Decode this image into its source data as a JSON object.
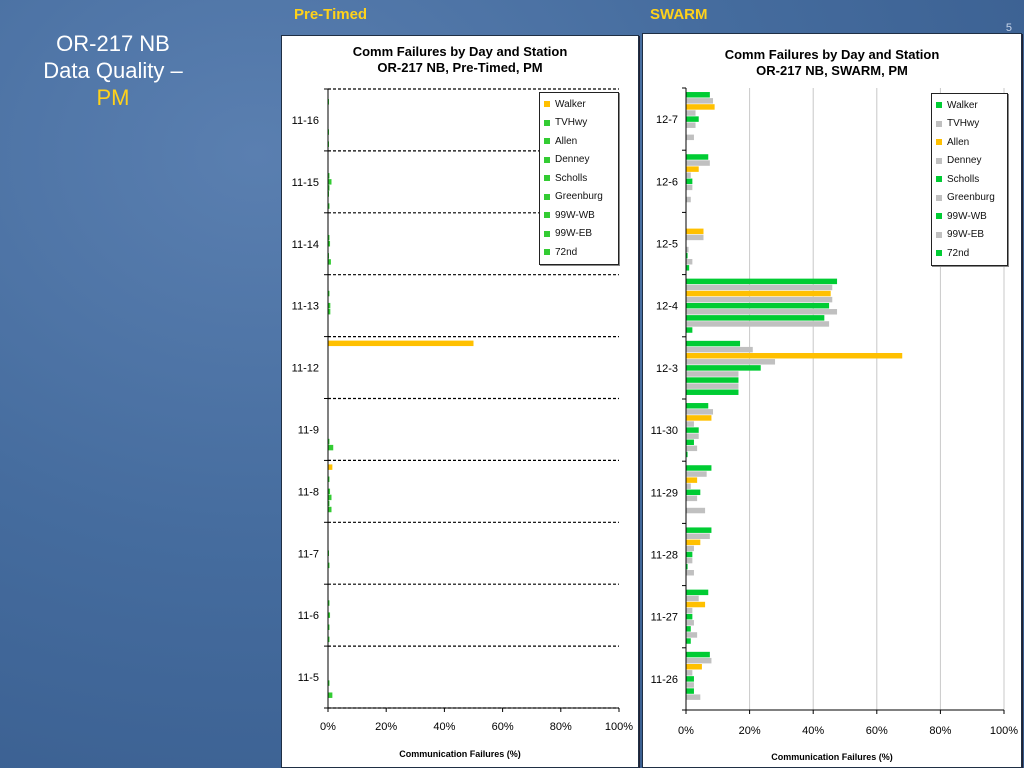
{
  "slide": {
    "title_line1": "OR-217 NB",
    "title_line2": "Data Quality –",
    "title_line3": "PM",
    "label_left": "Pre-Timed",
    "label_right": "SWARM",
    "corner_mark": "5"
  },
  "chart_data": [
    {
      "type": "bar",
      "orientation": "horizontal",
      "title_line1": "Comm Failures by Day and Station",
      "title_line2": "OR-217 NB, Pre-Timed, PM",
      "xlabel": "Communication Failures (%)",
      "xlim": [
        0,
        100
      ],
      "xticks": [
        "0%",
        "20%",
        "40%",
        "60%",
        "80%",
        "100%"
      ],
      "categories": [
        "11-16",
        "11-15",
        "11-14",
        "11-13",
        "11-12",
        "11-9",
        "11-8",
        "11-7",
        "11-6",
        "11-5"
      ],
      "group_separators": "dashed",
      "legend_position": "top-right",
      "series": [
        {
          "name": "Walker",
          "color": "#ffc000",
          "values": [
            0,
            0,
            0,
            0,
            50,
            0,
            1.5,
            0,
            0,
            0
          ]
        },
        {
          "name": "TVHwy",
          "color": "#33cc33",
          "values": [
            0.3,
            0,
            0,
            0,
            0,
            0,
            0,
            0,
            0,
            0
          ]
        },
        {
          "name": "Allen",
          "color": "#33cc33",
          "values": [
            0,
            0,
            0,
            0.5,
            0,
            0,
            0.5,
            0,
            0.5,
            0
          ]
        },
        {
          "name": "Denney",
          "color": "#33cc33",
          "values": [
            0,
            0.5,
            0.5,
            0,
            0,
            0,
            0,
            0,
            0,
            0
          ]
        },
        {
          "name": "Scholls",
          "color": "#33cc33",
          "values": [
            0,
            1.2,
            0.7,
            0.8,
            0,
            0,
            0.7,
            0.3,
            0.7,
            0
          ]
        },
        {
          "name": "Greenburg",
          "color": "#33cc33",
          "values": [
            0,
            0.5,
            0,
            0.8,
            0,
            0,
            1.2,
            0,
            0,
            0.5
          ]
        },
        {
          "name": "99W-WB",
          "color": "#33cc33",
          "values": [
            0.3,
            0.3,
            0.3,
            0,
            0,
            0.5,
            0.5,
            0.5,
            0.5,
            0
          ]
        },
        {
          "name": "99W-EB",
          "color": "#33cc33",
          "values": [
            0,
            0,
            1.0,
            0,
            0,
            1.8,
            1.2,
            0,
            0,
            1.5
          ]
        },
        {
          "name": "72nd",
          "color": "#33cc33",
          "values": [
            0.3,
            0.5,
            0,
            0,
            0,
            0,
            0,
            0,
            0.5,
            0
          ]
        }
      ]
    },
    {
      "type": "bar",
      "orientation": "horizontal",
      "title_line1": "Comm Failures by Day and Station",
      "title_line2": "OR-217 NB, SWARM, PM",
      "xlabel": "Communication Failures (%)",
      "xlim": [
        0,
        100
      ],
      "xticks": [
        "0%",
        "20%",
        "40%",
        "60%",
        "80%",
        "100%"
      ],
      "categories": [
        "12-7",
        "12-6",
        "12-5",
        "12-4",
        "12-3",
        "11-30",
        "11-29",
        "11-28",
        "11-27",
        "11-26"
      ],
      "vertical_grid": true,
      "legend_position": "top-right",
      "series": [
        {
          "name": "Walker",
          "color": "#00cc33",
          "values": [
            7.5,
            7,
            0,
            47.5,
            17,
            7,
            8,
            8,
            7,
            7.5
          ]
        },
        {
          "name": "TVHwy",
          "color": "#c0c0c0",
          "values": [
            8.5,
            7.5,
            0,
            46,
            21,
            8.5,
            6.5,
            7.5,
            4,
            8
          ]
        },
        {
          "name": "Allen",
          "color": "#ffc000",
          "values": [
            9,
            4,
            5.5,
            45.5,
            68,
            8,
            3.5,
            4.5,
            6,
            5
          ]
        },
        {
          "name": "Denney",
          "color": "#c0c0c0",
          "values": [
            3,
            1.5,
            5.5,
            46,
            28,
            2.5,
            1.5,
            2.5,
            2,
            2
          ]
        },
        {
          "name": "Scholls",
          "color": "#00cc33",
          "values": [
            4,
            2,
            0,
            45,
            23.5,
            4,
            4.5,
            2,
            2,
            2.5
          ]
        },
        {
          "name": "Greenburg",
          "color": "#c0c0c0",
          "values": [
            3,
            2,
            0.8,
            47.5,
            16.5,
            4,
            3.5,
            2,
            2.5,
            2.5
          ]
        },
        {
          "name": "99W-WB",
          "color": "#00cc33",
          "values": [
            0,
            0,
            0.5,
            43.5,
            16.5,
            2.5,
            0,
            0.5,
            1.5,
            2.5
          ]
        },
        {
          "name": "99W-EB",
          "color": "#c0c0c0",
          "values": [
            2.5,
            1.5,
            2,
            45,
            16.5,
            3.5,
            6,
            2.5,
            3.5,
            4.5
          ]
        },
        {
          "name": "72nd",
          "color": "#00cc33",
          "values": [
            0,
            0,
            1,
            2,
            16.5,
            0.5,
            0,
            0,
            1.5,
            0
          ]
        }
      ]
    }
  ]
}
